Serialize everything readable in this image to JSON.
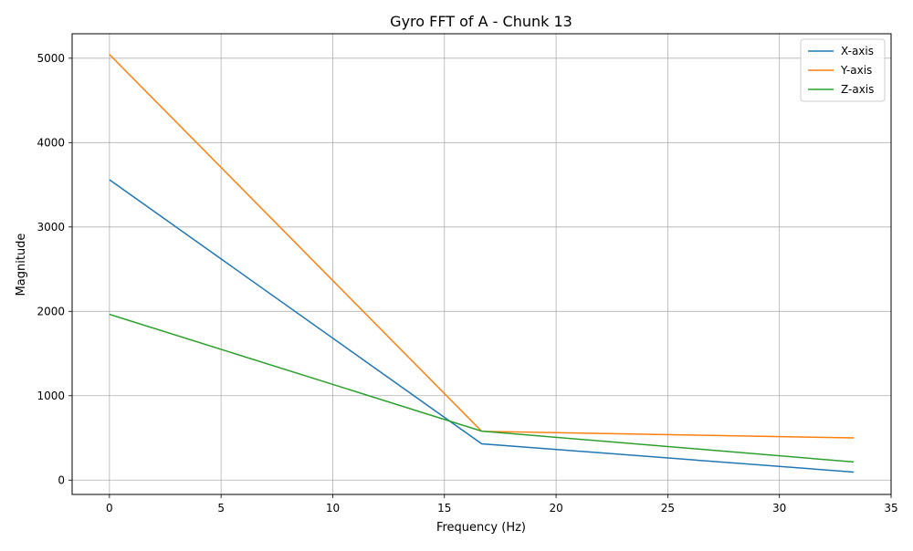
{
  "chart_data": {
    "type": "line",
    "title": "Gyro FFT of A - Chunk 13",
    "xlabel": "Frequency (Hz)",
    "ylabel": "Magnitude",
    "xlim": [
      -1.67,
      35
    ],
    "ylim": [
      -170,
      5290
    ],
    "xticks": [
      0,
      5,
      10,
      15,
      20,
      25,
      30,
      35
    ],
    "yticks": [
      0,
      1000,
      2000,
      3000,
      4000,
      5000
    ],
    "grid": true,
    "legend_position": "top-right",
    "x": [
      0,
      16.67,
      33.33
    ],
    "series": [
      {
        "name": "X-axis",
        "color": "#1f77b4",
        "values": [
          3560,
          430,
          95
        ]
      },
      {
        "name": "Y-axis",
        "color": "#ff7f0e",
        "values": [
          5045,
          578,
          500
        ]
      },
      {
        "name": "Z-axis",
        "color": "#2ca02c",
        "values": [
          1965,
          580,
          215
        ]
      }
    ]
  }
}
